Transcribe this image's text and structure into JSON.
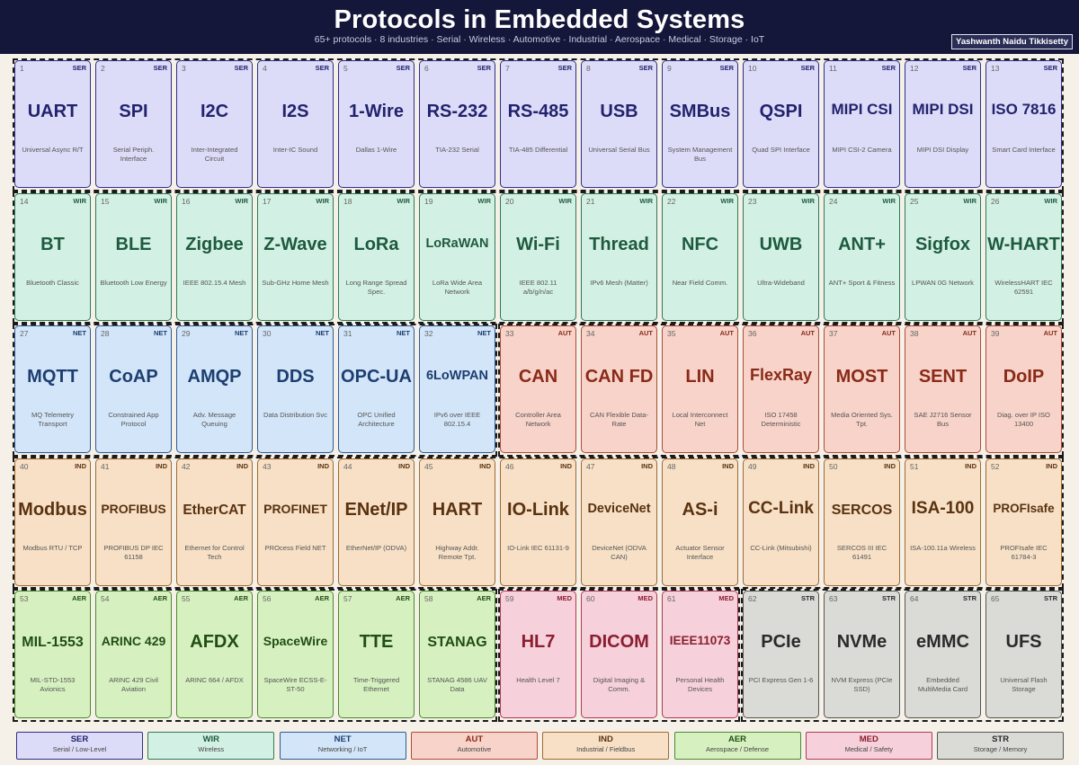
{
  "header": {
    "title": "Protocols in Embedded Systems",
    "subtitle": "65+ protocols  ·  8 industries  ·  Serial · Wireless · Automotive · Industrial · Aerospace · Medical · Storage · IoT",
    "author": "Yashwanth Naidu Tikkisetty"
  },
  "categories": {
    "SER": {
      "name": "Serial / Low-Level",
      "bg": "#dcdcf8",
      "border": "#2e2e86",
      "text": "#22226e"
    },
    "WIR": {
      "name": "Wireless",
      "bg": "#d3f0e4",
      "border": "#2e7a56",
      "text": "#1d5a3e"
    },
    "NET": {
      "name": "Networking / IoT",
      "bg": "#d3e5f8",
      "border": "#2e5a96",
      "text": "#1c3e70"
    },
    "AUT": {
      "name": "Automotive",
      "bg": "#f7d3c9",
      "border": "#b44a36",
      "text": "#8a2a18"
    },
    "IND": {
      "name": "Industrial / Fieldbus",
      "bg": "#f7e0c6",
      "border": "#a06a30",
      "text": "#5a3210"
    },
    "AER": {
      "name": "Aerospace / Defense",
      "bg": "#d7f0c0",
      "border": "#4a8a2e",
      "text": "#1f4e12"
    },
    "MED": {
      "name": "Medical / Safety",
      "bg": "#f6d0da",
      "border": "#b03a58",
      "text": "#8a1e30"
    },
    "STR": {
      "name": "Storage / Memory",
      "bg": "#dadad6",
      "border": "#555550",
      "text": "#2a2a2a"
    }
  },
  "legend_order": [
    "SER",
    "WIR",
    "NET",
    "AUT",
    "IND",
    "AER",
    "MED",
    "STR"
  ],
  "protocols": [
    {
      "n": "1",
      "code": "SER",
      "abbr": "UART",
      "desc": "Universal Async R/T"
    },
    {
      "n": "2",
      "code": "SER",
      "abbr": "SPI",
      "desc": "Serial Periph. Interface"
    },
    {
      "n": "3",
      "code": "SER",
      "abbr": "I2C",
      "desc": "Inter-Integrated Circuit"
    },
    {
      "n": "4",
      "code": "SER",
      "abbr": "I2S",
      "desc": "Inter-IC Sound"
    },
    {
      "n": "5",
      "code": "SER",
      "abbr": "1-Wire",
      "desc": "Dallas 1-Wire"
    },
    {
      "n": "6",
      "code": "SER",
      "abbr": "RS-232",
      "desc": "TIA-232 Serial"
    },
    {
      "n": "7",
      "code": "SER",
      "abbr": "RS-485",
      "desc": "TIA-485 Differential"
    },
    {
      "n": "8",
      "code": "SER",
      "abbr": "USB",
      "desc": "Universal Serial Bus"
    },
    {
      "n": "9",
      "code": "SER",
      "abbr": "SMBus",
      "desc": "System Management Bus"
    },
    {
      "n": "10",
      "code": "SER",
      "abbr": "QSPI",
      "desc": "Quad SPI Interface"
    },
    {
      "n": "11",
      "code": "SER",
      "abbr": "MIPI CSI",
      "desc": "MIPI CSI-2 Camera"
    },
    {
      "n": "12",
      "code": "SER",
      "abbr": "MIPI DSI",
      "desc": "MIPI DSI Display"
    },
    {
      "n": "13",
      "code": "SER",
      "abbr": "ISO 7816",
      "desc": "Smart Card Interface"
    },
    {
      "n": "14",
      "code": "WIR",
      "abbr": "BT",
      "desc": "Bluetooth Classic"
    },
    {
      "n": "15",
      "code": "WIR",
      "abbr": "BLE",
      "desc": "Bluetooth Low Energy"
    },
    {
      "n": "16",
      "code": "WIR",
      "abbr": "Zigbee",
      "desc": "IEEE 802.15.4 Mesh"
    },
    {
      "n": "17",
      "code": "WIR",
      "abbr": "Z-Wave",
      "desc": "Sub-GHz Home Mesh"
    },
    {
      "n": "18",
      "code": "WIR",
      "abbr": "LoRa",
      "desc": "Long Range Spread Spec."
    },
    {
      "n": "19",
      "code": "WIR",
      "abbr": "LoRaWAN",
      "desc": "LoRa Wide Area Network"
    },
    {
      "n": "20",
      "code": "WIR",
      "abbr": "Wi-Fi",
      "desc": "IEEE 802.11 a/b/g/n/ac"
    },
    {
      "n": "21",
      "code": "WIR",
      "abbr": "Thread",
      "desc": "IPv6 Mesh (Matter)"
    },
    {
      "n": "22",
      "code": "WIR",
      "abbr": "NFC",
      "desc": "Near Field Comm."
    },
    {
      "n": "23",
      "code": "WIR",
      "abbr": "UWB",
      "desc": "Ultra-Wideband"
    },
    {
      "n": "24",
      "code": "WIR",
      "abbr": "ANT+",
      "desc": "ANT+ Sport & Fitness"
    },
    {
      "n": "25",
      "code": "WIR",
      "abbr": "Sigfox",
      "desc": "LPWAN 0G Network"
    },
    {
      "n": "26",
      "code": "WIR",
      "abbr": "W-HART",
      "desc": "WirelessHART IEC 62591"
    },
    {
      "n": "27",
      "code": "NET",
      "abbr": "MQTT",
      "desc": "MQ Telemetry Transport"
    },
    {
      "n": "28",
      "code": "NET",
      "abbr": "CoAP",
      "desc": "Constrained App Protocol"
    },
    {
      "n": "29",
      "code": "NET",
      "abbr": "AMQP",
      "desc": "Adv. Message Queuing"
    },
    {
      "n": "30",
      "code": "NET",
      "abbr": "DDS",
      "desc": "Data Distribution Svc"
    },
    {
      "n": "31",
      "code": "NET",
      "abbr": "OPC-UA",
      "desc": "OPC Unified Architecture"
    },
    {
      "n": "32",
      "code": "NET",
      "abbr": "6LoWPAN",
      "desc": "IPv6 over IEEE 802.15.4"
    },
    {
      "n": "33",
      "code": "AUT",
      "abbr": "CAN",
      "desc": "Controller Area Network"
    },
    {
      "n": "34",
      "code": "AUT",
      "abbr": "CAN FD",
      "desc": "CAN Flexible Data-Rate"
    },
    {
      "n": "35",
      "code": "AUT",
      "abbr": "LIN",
      "desc": "Local Interconnect Net"
    },
    {
      "n": "36",
      "code": "AUT",
      "abbr": "FlexRay",
      "desc": "ISO 17458 Deterministic"
    },
    {
      "n": "37",
      "code": "AUT",
      "abbr": "MOST",
      "desc": "Media Oriented Sys. Tpt."
    },
    {
      "n": "38",
      "code": "AUT",
      "abbr": "SENT",
      "desc": "SAE J2716 Sensor Bus"
    },
    {
      "n": "39",
      "code": "AUT",
      "abbr": "DoIP",
      "desc": "Diag. over IP ISO 13400"
    },
    {
      "n": "40",
      "code": "IND",
      "abbr": "Modbus",
      "desc": "Modbus RTU / TCP"
    },
    {
      "n": "41",
      "code": "IND",
      "abbr": "PROFIBUS",
      "desc": "PROFIBUS DP IEC 61158"
    },
    {
      "n": "42",
      "code": "IND",
      "abbr": "EtherCAT",
      "desc": "Ethernet for Control Tech"
    },
    {
      "n": "43",
      "code": "IND",
      "abbr": "PROFINET",
      "desc": "PROcess Field NET"
    },
    {
      "n": "44",
      "code": "IND",
      "abbr": "ENet/IP",
      "desc": "EtherNet/IP (ODVA)"
    },
    {
      "n": "45",
      "code": "IND",
      "abbr": "HART",
      "desc": "Highway Addr. Remote Tpt."
    },
    {
      "n": "46",
      "code": "IND",
      "abbr": "IO-Link",
      "desc": "IO-Link IEC 61131-9"
    },
    {
      "n": "47",
      "code": "IND",
      "abbr": "DeviceNet",
      "desc": "DeviceNet (ODVA CAN)"
    },
    {
      "n": "48",
      "code": "IND",
      "abbr": "AS-i",
      "desc": "Actuator Sensor Interface"
    },
    {
      "n": "49",
      "code": "IND",
      "abbr": "CC-Link",
      "desc": "CC-Link (Mitsubishi)"
    },
    {
      "n": "50",
      "code": "IND",
      "abbr": "SERCOS",
      "desc": "SERCOS III IEC 61491"
    },
    {
      "n": "51",
      "code": "IND",
      "abbr": "ISA-100",
      "desc": "ISA-100.11a Wireless"
    },
    {
      "n": "52",
      "code": "IND",
      "abbr": "PROFIsafe",
      "desc": "PROFIsafe IEC 61784-3"
    },
    {
      "n": "53",
      "code": "AER",
      "abbr": "MIL-1553",
      "desc": "MIL-STD-1553 Avionics"
    },
    {
      "n": "54",
      "code": "AER",
      "abbr": "ARINC 429",
      "desc": "ARINC 429 Civil Aviation"
    },
    {
      "n": "55",
      "code": "AER",
      "abbr": "AFDX",
      "desc": "ARINC 664 / AFDX"
    },
    {
      "n": "56",
      "code": "AER",
      "abbr": "SpaceWire",
      "desc": "SpaceWire ECSS-E-ST-50"
    },
    {
      "n": "57",
      "code": "AER",
      "abbr": "TTE",
      "desc": "Time-Triggered Ethernet"
    },
    {
      "n": "58",
      "code": "AER",
      "abbr": "STANAG",
      "desc": "STANAG 4586 UAV Data"
    },
    {
      "n": "59",
      "code": "MED",
      "abbr": "HL7",
      "desc": "Health Level 7"
    },
    {
      "n": "60",
      "code": "MED",
      "abbr": "DICOM",
      "desc": "Digital Imaging & Comm."
    },
    {
      "n": "61",
      "code": "MED",
      "abbr": "IEEE11073",
      "desc": "Personal Health Devices"
    },
    {
      "n": "62",
      "code": "STR",
      "abbr": "PCIe",
      "desc": "PCI Express Gen 1-6"
    },
    {
      "n": "63",
      "code": "STR",
      "abbr": "NVMe",
      "desc": "NVM Express (PCIe SSD)"
    },
    {
      "n": "64",
      "code": "STR",
      "abbr": "eMMC",
      "desc": "Embedded MultiMedia Card"
    },
    {
      "n": "65",
      "code": "STR",
      "abbr": "UFS",
      "desc": "Universal Flash Storage"
    }
  ]
}
